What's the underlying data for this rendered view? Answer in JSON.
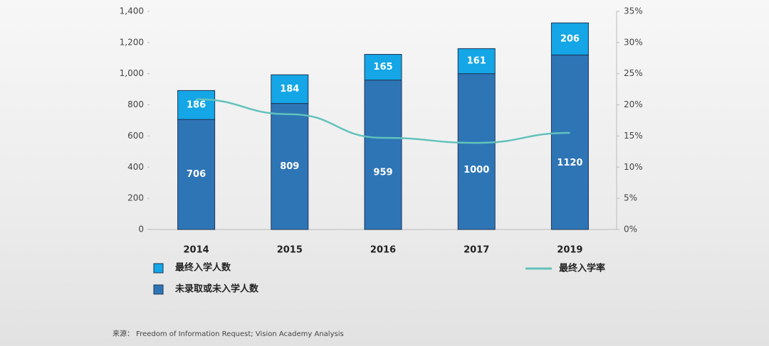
{
  "chart_data": {
    "type": "bar",
    "categories": [
      "2014",
      "2015",
      "2016",
      "2017",
      "2019"
    ],
    "series": [
      {
        "name": "最终入学人数",
        "color": "#14a6e6",
        "values": [
          186,
          184,
          165,
          161,
          206
        ]
      },
      {
        "name": "未录取或未入学人数",
        "color": "#2e75b6",
        "values": [
          706,
          809,
          959,
          1000,
          1120
        ]
      },
      {
        "name": "最终入学率",
        "color": "#62c2bb",
        "type": "line",
        "axis": "y2",
        "values": [
          20.9,
          18.5,
          14.7,
          13.9,
          15.5
        ]
      }
    ],
    "ylim": [
      0,
      1400
    ],
    "yticks": [
      0,
      200,
      400,
      600,
      800,
      {
        "value": 1000,
        "label": "1,000"
      },
      {
        "value": 1200,
        "label": "1,200"
      },
      {
        "value": 1400,
        "label": "1,400"
      }
    ],
    "y2lim": [
      0,
      35
    ],
    "y2ticks": [
      {
        "value": 0,
        "label": "0%"
      },
      {
        "value": 5,
        "label": "5%"
      },
      {
        "value": 10,
        "label": "10%"
      },
      {
        "value": 15,
        "label": "15%"
      },
      {
        "value": 20,
        "label": "20%"
      },
      {
        "value": 25,
        "label": "25%"
      },
      {
        "value": 30,
        "label": "30%"
      },
      {
        "value": 35,
        "label": "35%"
      }
    ],
    "source": "来源： Freedom of Information Request; Vision Academy Analysis"
  }
}
